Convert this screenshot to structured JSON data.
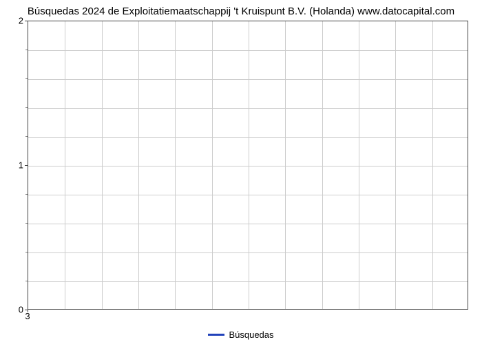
{
  "chart": {
    "type": "line",
    "title": "Búsquedas 2024 de Exploitatiemaatschappij 't Kruispunt B.V. (Holanda) www.datocapital.com",
    "title_fontsize": 15,
    "title_color": "#000000",
    "background_color": "#ffffff",
    "plot_border_color": "#404040",
    "grid_color": "#cccccc",
    "axis_label_fontsize": 13,
    "axis_label_color": "#000000",
    "y": {
      "lim": [
        0,
        2
      ],
      "major_ticks": [
        0,
        1,
        2
      ],
      "minor_tick_count_between": 4
    },
    "x": {
      "major_ticks": [
        3
      ],
      "vertical_grid_count": 12
    },
    "series": [
      {
        "name": "Búsquedas",
        "color": "#2142ba",
        "line_width": 3,
        "data_x": [],
        "data_y": []
      }
    ],
    "legend": {
      "position": "bottom-center",
      "label": "Búsquedas",
      "swatch_color": "#2142ba"
    }
  }
}
